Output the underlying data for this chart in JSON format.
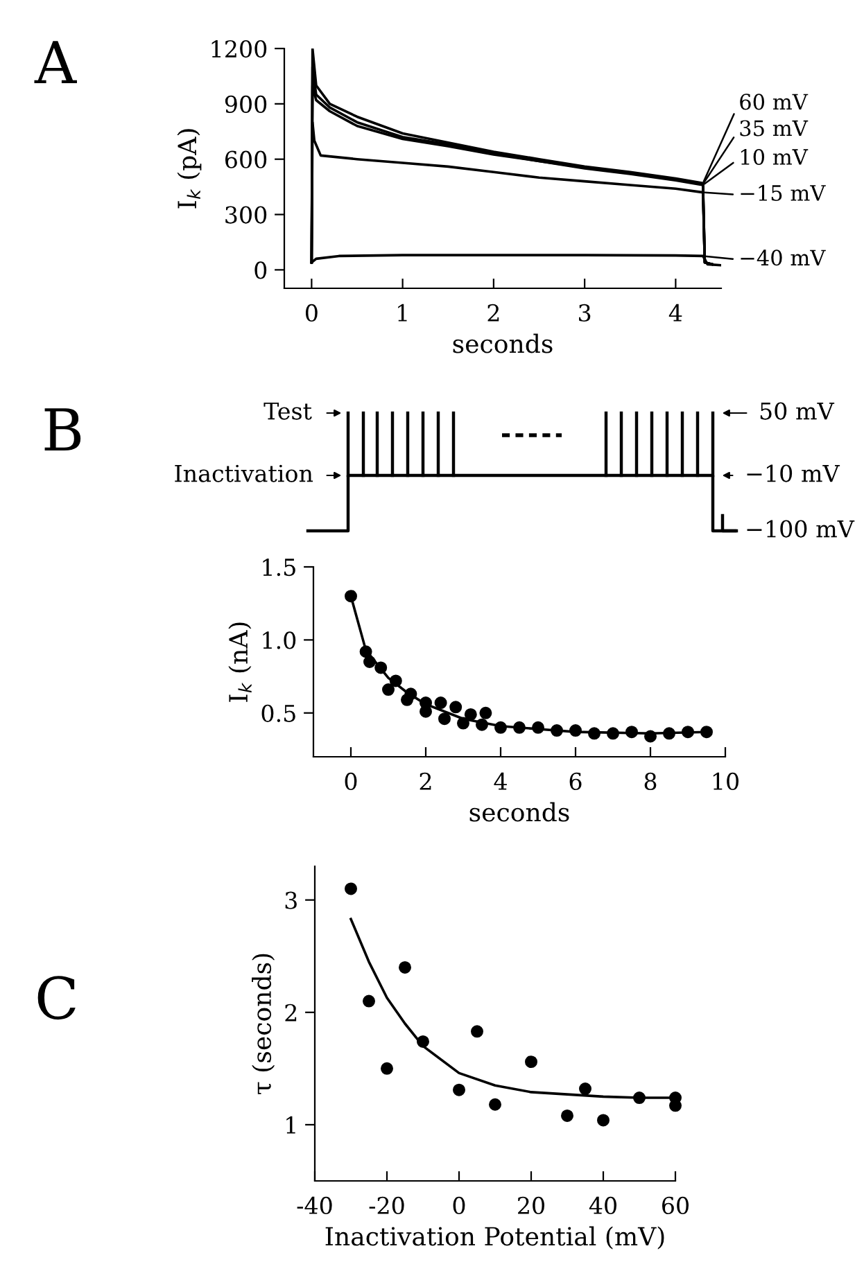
{
  "chart_data": [
    {
      "type": "line",
      "title": "A",
      "xlabel": "seconds",
      "ylabel": "I$_{k}$ (pA)",
      "xlim": [
        -0.3,
        4.5
      ],
      "ylim": [
        -100,
        1200
      ],
      "xticks": [
        0,
        1,
        2,
        3,
        4
      ],
      "yticks": [
        0,
        300,
        600,
        900,
        1200
      ],
      "color": "#000000",
      "legend": "right",
      "series": [
        {
          "name": "60 mV",
          "x": [
            0,
            0.01,
            0.05,
            0.2,
            0.5,
            1,
            1.5,
            2,
            2.5,
            3,
            3.5,
            4,
            4.3,
            4.32,
            4.4
          ],
          "values": [
            40,
            1200,
            1000,
            900,
            830,
            740,
            690,
            640,
            600,
            560,
            530,
            495,
            470,
            40,
            30
          ]
        },
        {
          "name": "35 mV",
          "x": [
            0,
            0.01,
            0.05,
            0.2,
            0.5,
            1,
            1.5,
            2,
            2.5,
            3,
            3.5,
            4,
            4.3,
            4.32,
            4.4
          ],
          "values": [
            40,
            1100,
            950,
            880,
            800,
            720,
            680,
            630,
            590,
            555,
            525,
            490,
            465,
            40,
            30
          ]
        },
        {
          "name": "10 mV",
          "x": [
            0,
            0.01,
            0.05,
            0.2,
            0.5,
            1,
            1.5,
            2,
            2.5,
            3,
            3.5,
            4,
            4.3,
            4.32,
            4.4
          ],
          "values": [
            40,
            1000,
            920,
            860,
            780,
            710,
            670,
            625,
            590,
            550,
            520,
            485,
            460,
            40,
            30
          ]
        },
        {
          "name": "−15 mV",
          "x": [
            0,
            0.01,
            0.03,
            0.1,
            0.5,
            1,
            1.5,
            2,
            2.5,
            3,
            3.5,
            4,
            4.3,
            4.32,
            4.4
          ],
          "values": [
            40,
            800,
            700,
            620,
            600,
            580,
            560,
            530,
            500,
            480,
            460,
            440,
            420,
            40,
            30
          ]
        },
        {
          "name": "−40 mV",
          "x": [
            0,
            0.05,
            0.3,
            1,
            2,
            3,
            4,
            4.3,
            4.35,
            4.5
          ],
          "values": [
            40,
            60,
            75,
            80,
            80,
            80,
            78,
            75,
            30,
            25
          ]
        }
      ]
    },
    {
      "type": "other",
      "title": "B",
      "annotations": [
        "Test",
        "Inactivation",
        "50 mV",
        "−10 mV",
        "−100 mV"
      ]
    },
    {
      "type": "scatter",
      "xlabel": "seconds",
      "ylabel": "I$_{k}$ (nA)",
      "xlim": [
        -1,
        10
      ],
      "ylim": [
        0.2,
        1.5
      ],
      "xticks": [
        0,
        2,
        4,
        6,
        8,
        10
      ],
      "yticks": [
        {
          "value": 0.5,
          "label": "0.5"
        },
        {
          "value": 1.0,
          "label": "1.0"
        },
        {
          "value": 1.5,
          "label": "1.5"
        }
      ],
      "series": [
        {
          "type": "scatter",
          "marker": "circle",
          "color": "#000000",
          "x": [
            0,
            0.4,
            0.5,
            0.8,
            1.0,
            1.2,
            1.5,
            1.6,
            2.0,
            2.0,
            2.4,
            2.5,
            2.8,
            3.0,
            3.2,
            3.5,
            3.6,
            4.0,
            4.5,
            5.0,
            5.5,
            6.0,
            6.5,
            7.0,
            7.5,
            8.0,
            8.5,
            9.0,
            9.5
          ],
          "values": [
            1.3,
            0.92,
            0.85,
            0.81,
            0.66,
            0.72,
            0.59,
            0.63,
            0.57,
            0.51,
            0.57,
            0.46,
            0.54,
            0.43,
            0.49,
            0.42,
            0.5,
            0.4,
            0.4,
            0.4,
            0.38,
            0.38,
            0.36,
            0.36,
            0.37,
            0.34,
            0.36,
            0.37,
            0.37
          ]
        },
        {
          "type": "line",
          "marker": "none",
          "color": "#000000",
          "x": [
            0,
            0.4,
            1,
            1.5,
            2,
            3,
            4,
            5,
            6,
            8,
            9.5
          ],
          "values": [
            1.3,
            0.93,
            0.74,
            0.64,
            0.56,
            0.46,
            0.41,
            0.39,
            0.37,
            0.36,
            0.37
          ]
        }
      ]
    },
    {
      "type": "scatter",
      "title": "C",
      "xlabel": "Inactivation Potential (mV)",
      "ylabel": "τ (seconds)",
      "xlim": [
        -40,
        60
      ],
      "ylim": [
        0.5,
        3.3
      ],
      "xticks": [
        -40,
        -20,
        0,
        20,
        40,
        60
      ],
      "yticks": [
        1,
        2,
        3
      ],
      "series": [
        {
          "type": "scatter",
          "marker": "circle",
          "color": "#000000",
          "x": [
            -30,
            -25,
            -20,
            -15,
            -10,
            0,
            5,
            10,
            20,
            30,
            35,
            40,
            50,
            60,
            60
          ],
          "values": [
            3.1,
            2.1,
            1.5,
            2.4,
            1.74,
            1.31,
            1.83,
            1.18,
            1.56,
            1.08,
            1.32,
            1.04,
            1.24,
            1.24,
            1.17
          ]
        },
        {
          "type": "line",
          "marker": "none",
          "color": "#000000",
          "x": [
            -30,
            -25,
            -20,
            -15,
            -10,
            0,
            10,
            20,
            30,
            40,
            50,
            60
          ],
          "values": [
            2.83,
            2.45,
            2.13,
            1.9,
            1.7,
            1.46,
            1.35,
            1.29,
            1.27,
            1.25,
            1.24,
            1.24
          ]
        }
      ]
    }
  ]
}
